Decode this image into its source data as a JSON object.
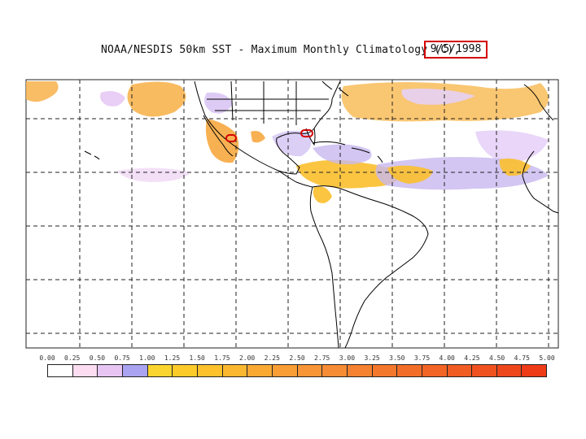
{
  "title": {
    "text": "NOAA/NESDIS 50km SST - Maximum Monthly Climatology (C),",
    "date": "9/5/1998"
  },
  "colors": {
    "coast": "#000000",
    "grid": "#222222",
    "highlight": "#d40000"
  },
  "map_regions": [
    {
      "name": "north-pacific-anomaly",
      "color": "#f7b24a"
    },
    {
      "name": "north-atlantic-anomaly",
      "color": "#f8b84e"
    },
    {
      "name": "caribbean-anomaly",
      "color": "#fbbf2e"
    },
    {
      "name": "gulf-of-california-anomaly",
      "color": "#f6a840"
    },
    {
      "name": "tropical-atlantic-band",
      "color": "#c8b8ef"
    }
  ],
  "scale": {
    "labels": [
      "0.00",
      "0.25",
      "0.50",
      "0.75",
      "1.00",
      "1.25",
      "1.50",
      "1.75",
      "2.00",
      "2.25",
      "2.50",
      "2.75",
      "3.00",
      "3.25",
      "3.50",
      "3.75",
      "4.00",
      "4.25",
      "4.50",
      "4.75",
      "5.00"
    ],
    "colors": [
      "#ffffff",
      "#fbdcf1",
      "#e7c5f3",
      "#a9a3f0",
      "#fbd52f",
      "#fccb2a",
      "#fcc12b",
      "#fbb72f",
      "#faa933",
      "#f99d35",
      "#f89536",
      "#f68c34",
      "#f58231",
      "#f3782c",
      "#f26e28",
      "#f26525",
      "#f15c22",
      "#f0521f",
      "#ef471c",
      "#ee3b18"
    ]
  }
}
